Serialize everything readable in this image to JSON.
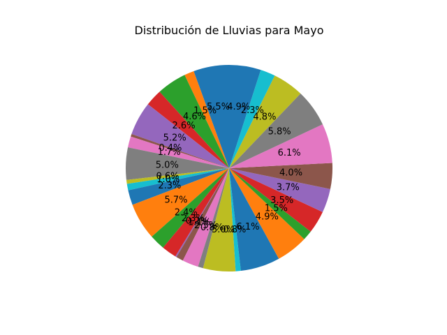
{
  "chart_data": {
    "type": "pie",
    "title": "Distribución de Lluvias para Mayo",
    "start_angle_deg": 90,
    "direction": "counterclockwise",
    "legend": "none",
    "slices": [
      {
        "value": 5.5,
        "label": "5.5%",
        "color": "#1f77b4"
      },
      {
        "value": 1.5,
        "label": "1.5%",
        "color": "#ff7f0e"
      },
      {
        "value": 4.6,
        "label": "4.6%",
        "color": "#2ca02c"
      },
      {
        "value": 2.6,
        "label": "2.6%",
        "color": "#d62728"
      },
      {
        "value": 5.2,
        "label": "5.2%",
        "color": "#9467bd"
      },
      {
        "value": 0.4,
        "label": "0.4%",
        "color": "#8c564b"
      },
      {
        "value": 1.7,
        "label": "1.7%",
        "color": "#e377c2"
      },
      {
        "value": 5.0,
        "label": "5.0%",
        "color": "#7f7f7f"
      },
      {
        "value": 0.6,
        "label": "0.6%",
        "color": "#bcbd22"
      },
      {
        "value": 1.0,
        "label": "1.0%",
        "color": "#17becf"
      },
      {
        "value": 2.3,
        "label": "2.3%",
        "color": "#1f77b4"
      },
      {
        "value": 5.7,
        "label": "5.7%",
        "color": "#ff7f0e"
      },
      {
        "value": 2.4,
        "label": "2.4%",
        "color": "#2ca02c"
      },
      {
        "value": 2.3,
        "label": "2.3%",
        "color": "#d62728"
      },
      {
        "value": 0.2,
        "label": "0.2%",
        "color": "#9467bd"
      },
      {
        "value": 1.1,
        "label": "1.1%",
        "color": "#8c564b"
      },
      {
        "value": 2.5,
        "label": "2.5%",
        "color": "#e377c2"
      },
      {
        "value": 0.8,
        "label": "0.8%",
        "color": "#7f7f7f"
      },
      {
        "value": 5.0,
        "label": "5.0%",
        "color": "#bcbd22"
      },
      {
        "value": 0.8,
        "label": "0.8%",
        "color": "#17becf"
      },
      {
        "value": 6.1,
        "label": "6.1%",
        "color": "#1f77b4"
      },
      {
        "value": 4.9,
        "label": "4.9%",
        "color": "#ff7f0e"
      },
      {
        "value": 1.5,
        "label": "1.5%",
        "color": "#2ca02c"
      },
      {
        "value": 3.5,
        "label": "3.5%",
        "color": "#d62728"
      },
      {
        "value": 3.7,
        "label": "3.7%",
        "color": "#9467bd"
      },
      {
        "value": 4.0,
        "label": "4.0%",
        "color": "#8c564b"
      },
      {
        "value": 6.1,
        "label": "6.1%",
        "color": "#e377c2"
      },
      {
        "value": 5.8,
        "label": "5.8%",
        "color": "#7f7f7f"
      },
      {
        "value": 4.8,
        "label": "4.8%",
        "color": "#bcbd22"
      },
      {
        "value": 2.3,
        "label": "2.3%",
        "color": "#17becf"
      },
      {
        "value": 4.9,
        "label": "4.9%",
        "color": "#1f77b4"
      }
    ]
  }
}
